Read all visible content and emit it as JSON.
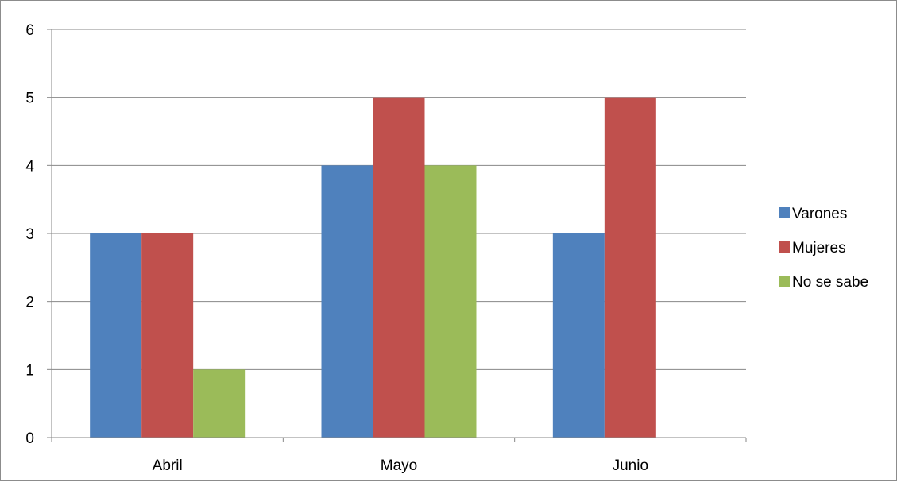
{
  "chart_data": {
    "type": "bar",
    "title": "",
    "xlabel": "",
    "ylabel": "",
    "categories": [
      "Abril",
      "Mayo",
      "Junio"
    ],
    "series": [
      {
        "name": "Varones",
        "color": "#4F81BD",
        "values": [
          3,
          4,
          3
        ]
      },
      {
        "name": "Mujeres",
        "color": "#C0504D",
        "values": [
          3,
          5,
          5
        ]
      },
      {
        "name": "No se sabe",
        "color": "#9BBB59",
        "values": [
          1,
          4,
          null
        ]
      }
    ],
    "ylim": [
      0,
      6
    ],
    "yticks": [
      "0",
      "1",
      "2",
      "3",
      "4",
      "5",
      "6"
    ],
    "grid": true,
    "legend_position": "right"
  }
}
